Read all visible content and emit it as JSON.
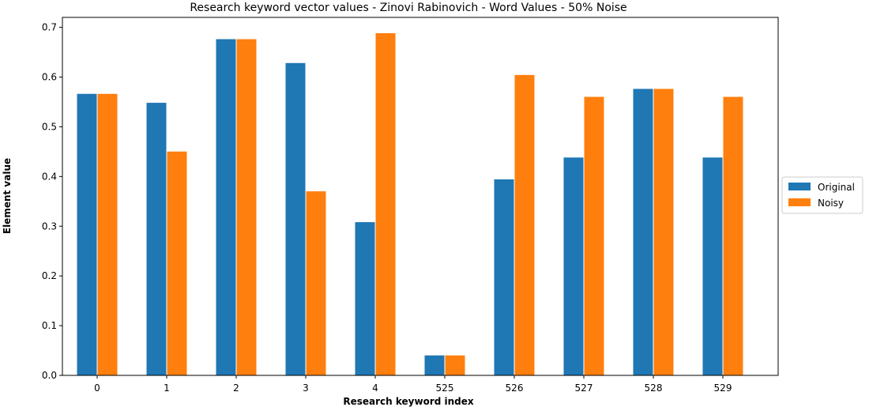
{
  "chart_data": {
    "type": "bar",
    "title": "Research keyword vector values - Zinovi Rabinovich - Word Values - 50% Noise",
    "xlabel": "Research keyword index",
    "ylabel": "Element value",
    "categories": [
      "0",
      "1",
      "2",
      "3",
      "4",
      "525",
      "526",
      "527",
      "528",
      "529"
    ],
    "series": [
      {
        "name": "Original",
        "color": "#1f77b4",
        "values": [
          0.567,
          0.549,
          0.677,
          0.629,
          0.309,
          0.041,
          0.395,
          0.439,
          0.577,
          0.439
        ]
      },
      {
        "name": "Noisy",
        "color": "#ff7f0e",
        "values": [
          0.567,
          0.451,
          0.677,
          0.371,
          0.689,
          0.041,
          0.605,
          0.561,
          0.577,
          0.561
        ]
      }
    ],
    "ylim": [
      0.0,
      0.72
    ],
    "yticks": [
      "0.0",
      "0.1",
      "0.2",
      "0.3",
      "0.4",
      "0.5",
      "0.6",
      "0.7"
    ],
    "grid": false,
    "legend_position": "outside right"
  }
}
